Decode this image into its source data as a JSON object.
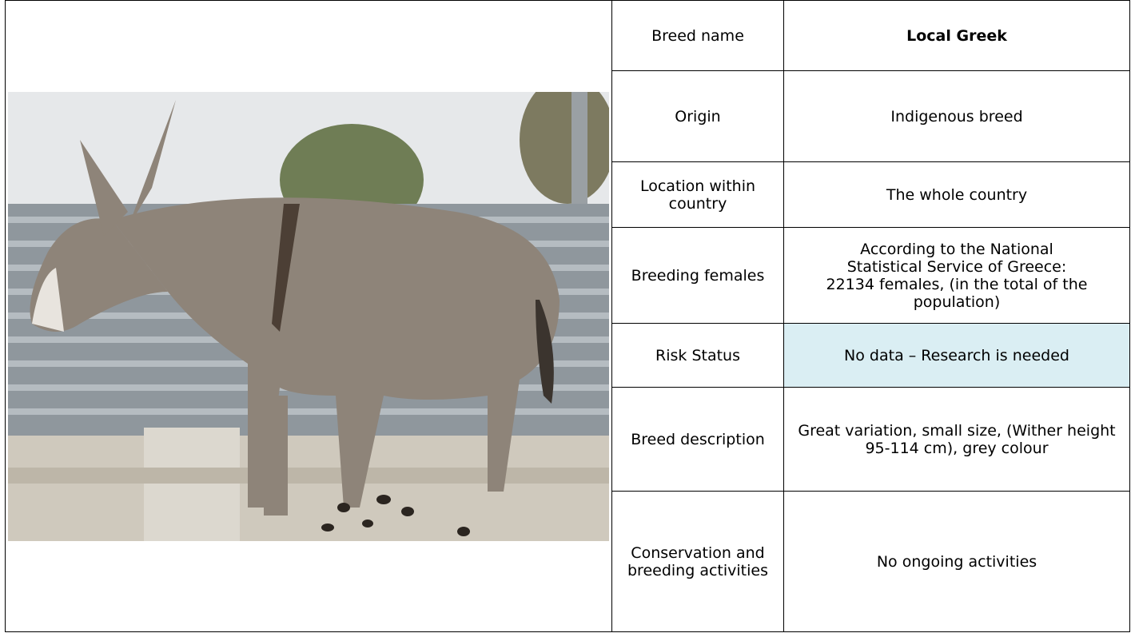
{
  "table": {
    "rows": [
      {
        "label": "Breed name",
        "value": "Local Greek"
      },
      {
        "label": "Origin",
        "value": "Indigenous breed"
      },
      {
        "label": "Location within country",
        "value": "The whole country"
      },
      {
        "label": "Breeding females",
        "value": "According to the National Statistical Service of Greece: 22134 females, (in the total of the population)"
      },
      {
        "label": "Risk Status",
        "value": "No data – Research is needed"
      },
      {
        "label": "Breed description",
        "value": "Great variation, small size, (Wither height 95-114 cm), grey colour"
      },
      {
        "label": "Conservation and breeding activities",
        "value": "No ongoing activities"
      }
    ]
  }
}
